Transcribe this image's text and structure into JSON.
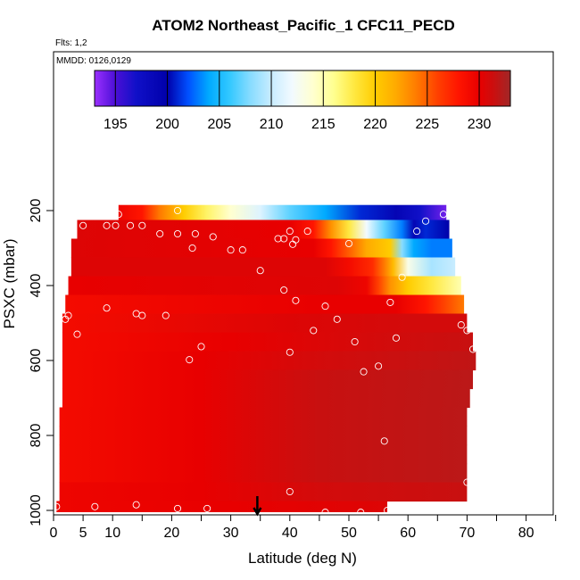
{
  "chart_data": {
    "type": "heatmap",
    "title": "ATOM2 Northeast_Pacific_1 CFC11_PECD",
    "annotations": [
      "Flts: 1,2",
      "MMDD: 0126,0129"
    ],
    "xlabel": "Latitude (deg N)",
    "ylabel": "PSXC (mbar)",
    "xlim": [
      0,
      85
    ],
    "ylim": [
      1000,
      0
    ],
    "x_ticks": [
      0,
      5,
      10,
      20,
      30,
      40,
      50,
      60,
      70,
      80
    ],
    "y_ticks": [
      200,
      400,
      600,
      800,
      1000
    ],
    "colorbar": {
      "range": [
        193,
        233
      ],
      "ticks": [
        195,
        200,
        205,
        210,
        215,
        220,
        225,
        230
      ],
      "stops": [
        {
          "v": 193,
          "c": "#9b30ff"
        },
        {
          "v": 195,
          "c": "#4b0fd6"
        },
        {
          "v": 197,
          "c": "#1010c8"
        },
        {
          "v": 200,
          "c": "#0000aa"
        },
        {
          "v": 202,
          "c": "#0050ff"
        },
        {
          "v": 204,
          "c": "#00aaff"
        },
        {
          "v": 206,
          "c": "#33c8ff"
        },
        {
          "v": 208,
          "c": "#88dcff"
        },
        {
          "v": 210,
          "c": "#c8ecff"
        },
        {
          "v": 212,
          "c": "#f2faff"
        },
        {
          "v": 214,
          "c": "#ffffd0"
        },
        {
          "v": 216,
          "c": "#ffff90"
        },
        {
          "v": 218,
          "c": "#ffe840"
        },
        {
          "v": 220,
          "c": "#ffcc00"
        },
        {
          "v": 222,
          "c": "#ffaa00"
        },
        {
          "v": 224,
          "c": "#ff7a00"
        },
        {
          "v": 226,
          "c": "#ff4000"
        },
        {
          "v": 228,
          "c": "#ff1500"
        },
        {
          "v": 230,
          "c": "#e80000"
        },
        {
          "v": 231.5,
          "c": "#c81010"
        },
        {
          "v": 233,
          "c": "#a02828"
        }
      ]
    },
    "rows": [
      {
        "p": 200,
        "x0": 11,
        "x1": 66.5,
        "gradient": [
          [
            11,
            229.5
          ],
          [
            15,
            228
          ],
          [
            18,
            224
          ],
          [
            22,
            220
          ],
          [
            26,
            217
          ],
          [
            30,
            214
          ],
          [
            35,
            211
          ],
          [
            40,
            207
          ],
          [
            46,
            204
          ],
          [
            52,
            201
          ],
          [
            58,
            199
          ],
          [
            62,
            197
          ],
          [
            66.5,
            194
          ]
        ]
      },
      {
        "p": 250,
        "x0": 4,
        "x1": 67,
        "gradient": [
          [
            4,
            230.5
          ],
          [
            40,
            230
          ],
          [
            44,
            228
          ],
          [
            47,
            223
          ],
          [
            50,
            218
          ],
          [
            53,
            212
          ],
          [
            56,
            207
          ],
          [
            59,
            203
          ],
          [
            61,
            199
          ],
          [
            63,
            201
          ],
          [
            67,
            200
          ]
        ]
      },
      {
        "p": 300,
        "x0": 3,
        "x1": 67.5,
        "gradient": [
          [
            3,
            230.5
          ],
          [
            44,
            230
          ],
          [
            47,
            228
          ],
          [
            50,
            225
          ],
          [
            53,
            222
          ],
          [
            57,
            220
          ],
          [
            59,
            208
          ],
          [
            61,
            204
          ],
          [
            64,
            203
          ],
          [
            67.5,
            203
          ]
        ]
      },
      {
        "p": 350,
        "x0": 3,
        "x1": 68,
        "gradient": [
          [
            3,
            230.5
          ],
          [
            46,
            230.5
          ],
          [
            50,
            229
          ],
          [
            54,
            227
          ],
          [
            56,
            224
          ],
          [
            57.5,
            221
          ],
          [
            60,
            213
          ],
          [
            64,
            209
          ],
          [
            68,
            210
          ]
        ]
      },
      {
        "p": 400,
        "x0": 2.5,
        "x1": 69,
        "gradient": [
          [
            2.5,
            230
          ],
          [
            48,
            230.5
          ],
          [
            53,
            229.5
          ],
          [
            55,
            226
          ],
          [
            57,
            223
          ],
          [
            60,
            220
          ],
          [
            64,
            218
          ],
          [
            69,
            215
          ]
        ]
      },
      {
        "p": 450,
        "x0": 2,
        "x1": 69.5,
        "gradient": [
          [
            2,
            229
          ],
          [
            45,
            230
          ],
          [
            58,
            230
          ],
          [
            63,
            228
          ],
          [
            66,
            226
          ],
          [
            69.5,
            224
          ]
        ]
      },
      {
        "p": 500,
        "x0": 1.5,
        "x1": 70,
        "gradient": [
          [
            1.5,
            229
          ],
          [
            40,
            230.5
          ],
          [
            60,
            231
          ],
          [
            70,
            231
          ]
        ]
      },
      {
        "p": 550,
        "x0": 1.5,
        "x1": 71,
        "gradient": [
          [
            1.5,
            229
          ],
          [
            30,
            230
          ],
          [
            55,
            231
          ],
          [
            71,
            231.5
          ]
        ]
      },
      {
        "p": 600,
        "x0": 1.5,
        "x1": 71.5,
        "gradient": [
          [
            1.5,
            229
          ],
          [
            25,
            230
          ],
          [
            45,
            231
          ],
          [
            71.5,
            231.8
          ]
        ]
      },
      {
        "p": 650,
        "x0": 1.5,
        "x1": 71,
        "gradient": [
          [
            1.5,
            229
          ],
          [
            25,
            230
          ],
          [
            45,
            231.5
          ],
          [
            71,
            232
          ]
        ]
      },
      {
        "p": 700,
        "x0": 1.5,
        "x1": 70.5,
        "gradient": [
          [
            1.5,
            229
          ],
          [
            25,
            230
          ],
          [
            45,
            231.5
          ],
          [
            70.5,
            232
          ]
        ]
      },
      {
        "p": 750,
        "x0": 1,
        "x1": 70,
        "gradient": [
          [
            1,
            229
          ],
          [
            25,
            230
          ],
          [
            45,
            231.5
          ],
          [
            70,
            232
          ]
        ]
      },
      {
        "p": 800,
        "x0": 1,
        "x1": 70,
        "gradient": [
          [
            1,
            229
          ],
          [
            25,
            230
          ],
          [
            45,
            231.5
          ],
          [
            70,
            232
          ]
        ]
      },
      {
        "p": 850,
        "x0": 1,
        "x1": 70,
        "gradient": [
          [
            1,
            229
          ],
          [
            25,
            230
          ],
          [
            45,
            231.5
          ],
          [
            70,
            232
          ]
        ]
      },
      {
        "p": 900,
        "x0": 1,
        "x1": 70,
        "gradient": [
          [
            1,
            229
          ],
          [
            25,
            230
          ],
          [
            45,
            231.5
          ],
          [
            70,
            232
          ]
        ]
      },
      {
        "p": 950,
        "x0": 1,
        "x1": 70,
        "gradient": [
          [
            1,
            229.5
          ],
          [
            25,
            230
          ],
          [
            45,
            231
          ],
          [
            70,
            231.5
          ]
        ]
      },
      {
        "p": 1000,
        "x0": 0.5,
        "x1": 56.5,
        "gradient": [
          [
            0.5,
            229.5
          ],
          [
            30,
            230
          ],
          [
            56.5,
            230.5
          ]
        ]
      }
    ],
    "points": [
      [
        11,
        210
      ],
      [
        21,
        200
      ],
      [
        61.5,
        255
      ],
      [
        63,
        228
      ],
      [
        66,
        210
      ],
      [
        5,
        240
      ],
      [
        9,
        240
      ],
      [
        10.5,
        240
      ],
      [
        13,
        240
      ],
      [
        15,
        240
      ],
      [
        18,
        262
      ],
      [
        21,
        262
      ],
      [
        24,
        262
      ],
      [
        27,
        270
      ],
      [
        40,
        255
      ],
      [
        43,
        255
      ],
      [
        50,
        288
      ],
      [
        23.5,
        300
      ],
      [
        30,
        305
      ],
      [
        32,
        305
      ],
      [
        38,
        275
      ],
      [
        39,
        275
      ],
      [
        41,
        278
      ],
      [
        40.5,
        290
      ],
      [
        35,
        360
      ],
      [
        39,
        412
      ],
      [
        41,
        440
      ],
      [
        46,
        455
      ],
      [
        59,
        378
      ],
      [
        57,
        445
      ],
      [
        19,
        480
      ],
      [
        14,
        475
      ],
      [
        15,
        480
      ],
      [
        9,
        460
      ],
      [
        2,
        490
      ],
      [
        2.5,
        480
      ],
      [
        4,
        530
      ],
      [
        44,
        520
      ],
      [
        48,
        490
      ],
      [
        51,
        550
      ],
      [
        58,
        540
      ],
      [
        25,
        563
      ],
      [
        23,
        598
      ],
      [
        40,
        578
      ],
      [
        52.5,
        630
      ],
      [
        55,
        615
      ],
      [
        69,
        505
      ],
      [
        70,
        520
      ],
      [
        71,
        570
      ],
      [
        56,
        815
      ],
      [
        70,
        925
      ],
      [
        0.5,
        990
      ],
      [
        7,
        990
      ],
      [
        14,
        985
      ],
      [
        21,
        995
      ],
      [
        26,
        995
      ],
      [
        40,
        950
      ],
      [
        46,
        1005
      ],
      [
        52,
        1005
      ],
      [
        56.5,
        1000
      ]
    ],
    "arrow_x": 34.5
  }
}
